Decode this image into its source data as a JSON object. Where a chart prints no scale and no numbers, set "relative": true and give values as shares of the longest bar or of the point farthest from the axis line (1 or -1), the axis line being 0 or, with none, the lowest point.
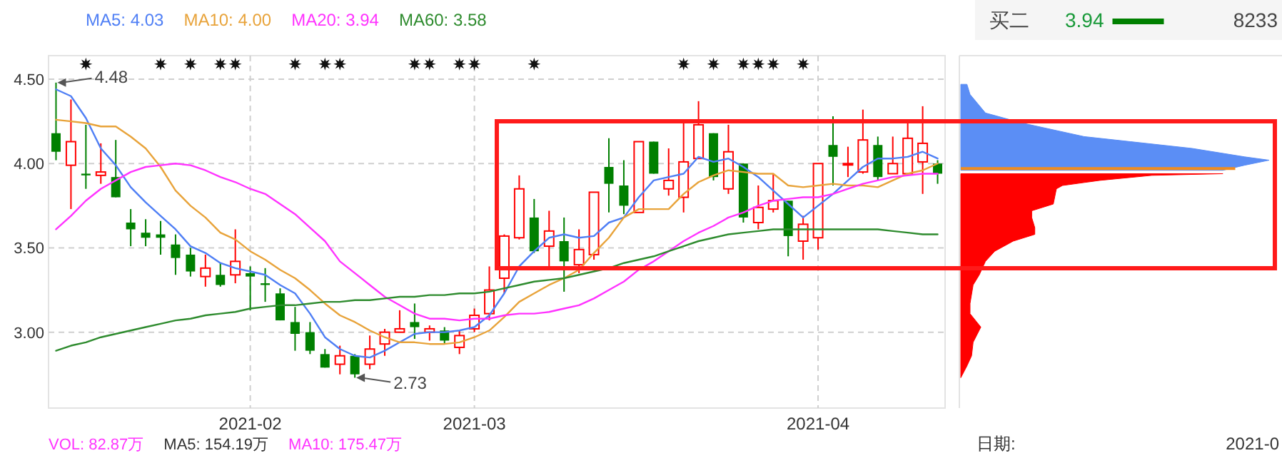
{
  "chart_data": [
    {
      "type": "candlestick",
      "categories": [
        null,
        null,
        null,
        null,
        null,
        null,
        null,
        null,
        null,
        null,
        null,
        null,
        null,
        "2021-02",
        null,
        null,
        null,
        null,
        null,
        null,
        null,
        null,
        null,
        null,
        null,
        null,
        null,
        null,
        "2021-03",
        null,
        null,
        null,
        null,
        null,
        null,
        null,
        null,
        null,
        null,
        null,
        null,
        null,
        null,
        null,
        null,
        null,
        null,
        null,
        null,
        null,
        null,
        "2021-04",
        null,
        null,
        null,
        null,
        null,
        null,
        null,
        null
      ],
      "ohlc": [
        [
          4.18,
          4.48,
          4.02,
          4.07
        ],
        [
          3.99,
          4.38,
          3.73,
          4.13
        ],
        [
          3.94,
          4.23,
          3.85,
          3.93
        ],
        [
          3.93,
          4.12,
          3.88,
          3.95
        ],
        [
          3.92,
          4.14,
          3.8,
          3.8
        ],
        [
          3.65,
          3.73,
          3.51,
          3.61
        ],
        [
          3.59,
          3.67,
          3.51,
          3.56
        ],
        [
          3.58,
          3.66,
          3.46,
          3.56
        ],
        [
          3.52,
          3.58,
          3.34,
          3.44
        ],
        [
          3.46,
          3.5,
          3.33,
          3.36
        ],
        [
          3.33,
          3.46,
          3.27,
          3.38
        ],
        [
          3.34,
          3.41,
          3.27,
          3.28
        ],
        [
          3.34,
          3.61,
          3.29,
          3.42
        ],
        [
          3.35,
          3.39,
          3.13,
          3.33
        ],
        [
          3.29,
          3.38,
          3.18,
          3.28
        ],
        [
          3.23,
          3.26,
          3.07,
          3.07
        ],
        [
          3.06,
          3.15,
          2.89,
          2.99
        ],
        [
          3.0,
          3.06,
          2.87,
          2.89
        ],
        [
          2.87,
          2.9,
          2.79,
          2.79
        ],
        [
          2.81,
          2.92,
          2.75,
          2.86
        ],
        [
          2.86,
          2.87,
          2.73,
          2.75
        ],
        [
          2.81,
          2.98,
          2.78,
          2.9
        ],
        [
          2.93,
          3.02,
          2.86,
          3.0
        ],
        [
          3.0,
          3.13,
          3.0,
          3.02
        ],
        [
          3.06,
          3.17,
          2.96,
          3.03
        ],
        [
          3.0,
          3.04,
          2.95,
          3.02
        ],
        [
          3.01,
          3.03,
          2.93,
          2.95
        ],
        [
          2.91,
          3.01,
          2.87,
          2.98
        ],
        [
          3.02,
          3.14,
          3.0,
          3.1
        ],
        [
          3.11,
          3.39,
          3.07,
          3.25
        ],
        [
          3.32,
          3.58,
          3.23,
          3.57
        ],
        [
          3.56,
          3.93,
          3.55,
          3.85
        ],
        [
          3.68,
          3.79,
          3.47,
          3.48
        ],
        [
          3.51,
          3.72,
          3.38,
          3.6
        ],
        [
          3.54,
          3.68,
          3.24,
          3.42
        ],
        [
          3.4,
          3.61,
          3.35,
          3.49
        ],
        [
          3.46,
          3.83,
          3.43,
          3.83
        ],
        [
          3.98,
          4.15,
          3.71,
          3.88
        ],
        [
          3.87,
          4.02,
          3.7,
          3.75
        ],
        [
          3.71,
          4.13,
          3.71,
          4.13
        ],
        [
          4.13,
          4.13,
          3.94,
          3.94
        ],
        [
          3.85,
          4.09,
          3.81,
          3.9
        ],
        [
          3.8,
          4.24,
          3.71,
          4.01
        ],
        [
          4.03,
          4.37,
          4.03,
          4.23
        ],
        [
          4.18,
          4.18,
          3.9,
          3.92
        ],
        [
          3.85,
          4.23,
          3.82,
          4.07
        ],
        [
          4.0,
          4.0,
          3.65,
          3.68
        ],
        [
          3.65,
          3.87,
          3.61,
          3.74
        ],
        [
          3.73,
          3.94,
          3.71,
          3.78
        ],
        [
          3.78,
          3.78,
          3.45,
          3.57
        ],
        [
          3.54,
          3.69,
          3.43,
          3.64
        ],
        [
          3.56,
          4.0,
          3.49,
          4.0
        ],
        [
          4.11,
          4.28,
          3.87,
          4.04
        ],
        [
          4.0,
          4.1,
          3.92,
          4.0
        ],
        [
          3.95,
          4.32,
          3.94,
          4.14
        ],
        [
          4.11,
          4.16,
          3.9,
          3.92
        ],
        [
          3.94,
          4.16,
          3.94,
          4.0
        ],
        [
          3.94,
          4.24,
          3.94,
          4.15
        ],
        [
          4.01,
          4.34,
          3.82,
          4.12
        ],
        [
          4.0,
          4.02,
          3.88,
          3.94
        ]
      ],
      "colors": [
        "#008000",
        "#ff0000",
        "#008000",
        "#ff0000",
        "#008000",
        "#008000",
        "#008000",
        "#008000",
        "#008000",
        "#008000",
        "#ff0000",
        "#008000",
        "#ff0000",
        "#008000",
        "#008000",
        "#008000",
        "#008000",
        "#008000",
        "#008000",
        "#ff0000",
        "#008000",
        "#ff0000",
        "#ff0000",
        "#ff0000",
        "#008000",
        "#ff0000",
        "#008000",
        "#ff0000",
        "#ff0000",
        "#ff0000",
        "#ff0000",
        "#ff0000",
        "#008000",
        "#ff0000",
        "#008000",
        "#ff0000",
        "#ff0000",
        "#008000",
        "#008000",
        "#ff0000",
        "#008000",
        "#ff0000",
        "#ff0000",
        "#ff0000",
        "#008000",
        "#ff0000",
        "#008000",
        "#ff0000",
        "#ff0000",
        "#008000",
        "#ff0000",
        "#ff0000",
        "#008000",
        "#ff0000",
        "#ff0000",
        "#008000",
        "#ff0000",
        "#ff0000",
        "#ff0000",
        "#008000"
      ],
      "series": [
        {
          "name": "MA5: 4.03",
          "type": "line",
          "color": "#4f7ff5",
          "values": [
            4.44,
            4.4,
            4.27,
            4.09,
            3.99,
            3.86,
            3.77,
            3.69,
            3.61,
            3.51,
            3.47,
            3.41,
            3.38,
            3.36,
            3.34,
            3.28,
            3.23,
            3.11,
            2.97,
            2.9,
            2.86,
            2.85,
            2.89,
            2.94,
            2.99,
            3.0,
            3.0,
            3.01,
            3.03,
            3.1,
            3.23,
            3.39,
            3.48,
            3.56,
            3.58,
            3.56,
            3.57,
            3.65,
            3.68,
            3.8,
            3.9,
            3.92,
            3.94,
            4.04,
            4.01,
            4.03,
            3.98,
            3.92,
            3.84,
            3.76,
            3.68,
            3.75,
            3.82,
            3.9,
            3.98,
            4.03,
            4.03,
            4.04,
            4.07,
            4.03
          ]
        },
        {
          "name": "MA10: 4.00",
          "type": "line",
          "color": "#e8a33a",
          "values": [
            4.26,
            4.25,
            4.24,
            4.22,
            4.22,
            4.16,
            4.09,
            3.98,
            3.84,
            3.75,
            3.68,
            3.59,
            3.55,
            3.48,
            3.43,
            3.37,
            3.32,
            3.25,
            3.17,
            3.1,
            3.06,
            3.01,
            2.97,
            2.94,
            2.94,
            2.93,
            2.93,
            2.94,
            2.97,
            3.01,
            3.09,
            3.18,
            3.23,
            3.28,
            3.32,
            3.37,
            3.47,
            3.56,
            3.68,
            3.73,
            3.73,
            3.73,
            3.82,
            3.89,
            3.93,
            3.96,
            3.95,
            3.94,
            3.94,
            3.87,
            3.86,
            3.87,
            3.88,
            3.87,
            3.87,
            3.86,
            3.9,
            3.94,
            3.96,
            4.0
          ]
        },
        {
          "name": "MA20: 3.94",
          "type": "line",
          "color": "#ff33ff",
          "values": [
            3.61,
            3.69,
            3.78,
            3.85,
            3.9,
            3.95,
            3.98,
            3.99,
            4.0,
            3.99,
            3.96,
            3.92,
            3.89,
            3.85,
            3.82,
            3.76,
            3.7,
            3.62,
            3.54,
            3.42,
            3.35,
            3.28,
            3.21,
            3.16,
            3.11,
            3.08,
            3.08,
            3.07,
            3.08,
            3.08,
            3.1,
            3.11,
            3.11,
            3.12,
            3.14,
            3.16,
            3.2,
            3.25,
            3.3,
            3.37,
            3.42,
            3.48,
            3.54,
            3.59,
            3.63,
            3.68,
            3.71,
            3.75,
            3.78,
            3.79,
            3.8,
            3.8,
            3.82,
            3.85,
            3.88,
            3.9,
            3.92,
            3.93,
            3.94,
            3.94
          ]
        },
        {
          "name": "MA60: 3.58",
          "type": "line",
          "color": "#2e8b2e",
          "values": [
            2.89,
            2.92,
            2.94,
            2.97,
            2.99,
            3.01,
            3.03,
            3.05,
            3.07,
            3.08,
            3.1,
            3.11,
            3.12,
            3.14,
            3.15,
            3.16,
            3.16,
            3.17,
            3.18,
            3.18,
            3.19,
            3.19,
            3.2,
            3.21,
            3.21,
            3.22,
            3.22,
            3.23,
            3.23,
            3.24,
            3.26,
            3.28,
            3.3,
            3.31,
            3.32,
            3.34,
            3.36,
            3.38,
            3.41,
            3.43,
            3.45,
            3.48,
            3.51,
            3.54,
            3.56,
            3.58,
            3.59,
            3.6,
            3.61,
            3.61,
            3.61,
            3.61,
            3.61,
            3.61,
            3.61,
            3.61,
            3.6,
            3.59,
            3.58,
            3.58
          ]
        },
        {
          "type": "scatter",
          "marker": "star",
          "color": "#111111",
          "values": [
            null,
            null,
            4.59,
            null,
            null,
            null,
            null,
            4.59,
            null,
            4.59,
            null,
            4.59,
            4.59,
            null,
            null,
            null,
            4.59,
            null,
            4.59,
            4.59,
            null,
            null,
            null,
            null,
            4.59,
            4.59,
            null,
            4.59,
            4.59,
            null,
            null,
            null,
            4.59,
            null,
            null,
            null,
            null,
            null,
            null,
            null,
            null,
            null,
            4.59,
            null,
            4.59,
            null,
            4.59,
            4.59,
            4.59,
            null,
            4.59,
            null,
            null,
            null,
            null,
            null,
            null,
            null,
            null,
            null
          ]
        }
      ],
      "ylim": [
        2.55,
        4.64
      ],
      "yticks": [
        {
          "value": 3.0,
          "label": "3.00"
        },
        {
          "value": 3.5,
          "label": "3.50"
        },
        {
          "value": 4.0,
          "label": "4.00"
        },
        {
          "value": 4.5,
          "label": "4.50"
        }
      ],
      "grid": true,
      "legend": "top left",
      "annotations": [
        "4.48",
        "2.73",
        "VOL: 82.87万",
        "MA5: 154.19万",
        "MA10: 175.47万"
      ]
    },
    {
      "type": "area",
      "orientation": "horizontal",
      "relative": true,
      "tick_labels": false,
      "ylim": [
        2.55,
        4.64
      ],
      "series": [
        {
          "color": "#5b8ef5",
          "x": [
            4.47,
            4.41,
            4.3,
            4.24,
            4.16,
            4.13,
            4.09,
            4.04,
            4.02,
            3.99,
            3.96
          ],
          "values": [
            0.02,
            0.03,
            0.08,
            0.2,
            0.4,
            0.55,
            0.75,
            0.92,
            1.0,
            0.92,
            0.85
          ]
        },
        {
          "color": "#ff0000",
          "x": [
            3.94,
            3.93,
            3.9,
            3.87,
            3.85,
            3.76,
            3.72,
            3.68,
            3.62,
            3.58,
            3.54,
            3.48,
            3.42,
            3.34,
            3.28,
            3.17,
            3.11,
            3.03,
            2.94,
            2.86,
            2.8,
            2.73
          ],
          "values": [
            0.85,
            0.62,
            0.45,
            0.33,
            0.31,
            0.3,
            0.23,
            0.23,
            0.24,
            0.24,
            0.17,
            0.11,
            0.08,
            0.06,
            0.04,
            0.03,
            0.03,
            0.065,
            0.04,
            0.035,
            0.02,
            0
          ]
        }
      ],
      "ref_lines": [
        {
          "axis": "y",
          "value": 3.97,
          "color": "#f08c1e"
        }
      ],
      "annotations": [
        "日期:",
        "2021-0"
      ]
    },
    {
      "type": "other",
      "annotations": [
        "买二",
        "3.94",
        "8233"
      ]
    }
  ]
}
